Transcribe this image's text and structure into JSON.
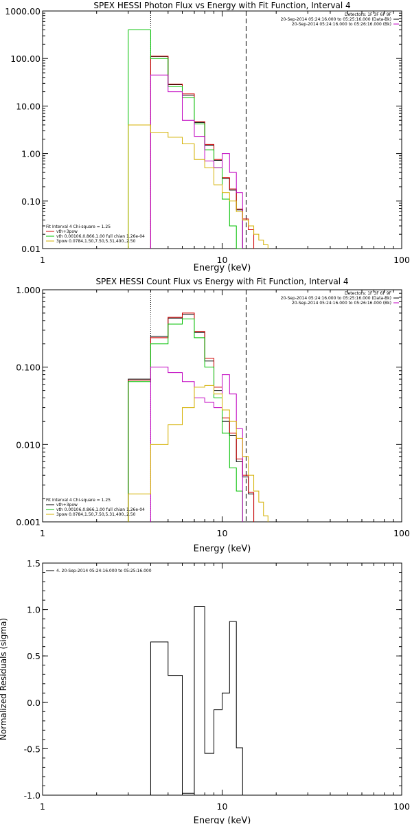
{
  "chart_data": [
    {
      "type": "line",
      "title": "SPEX HESSI Photon Flux vs Energy with Fit Function, Interval 4",
      "xlabel": "Energy (keV)",
      "ylabel": "",
      "x_scale": "log",
      "y_scale": "log",
      "xlim": [
        1,
        100
      ],
      "ylim": [
        0.01,
        1000
      ],
      "x_ticks": [
        "1",
        "10",
        "100"
      ],
      "y_ticks": [
        "0.01",
        "0.10",
        "1.00",
        "10.00",
        "100.00",
        "1000.00"
      ],
      "marker_lines": [
        {
          "style": "dotted",
          "x": 4.0
        },
        {
          "style": "dashed",
          "x": 13.6
        }
      ],
      "top_legend": [
        {
          "text": "Detectors: 1F 3F 6F 9F",
          "color": ""
        },
        {
          "text": "20-Sep-2014 05:24:16.000 to 05:25:16.000 (Data-Bk)",
          "color": "#000000"
        },
        {
          "text": "20-Sep-2014 05:24:16.000 to 05:26:16.000 (Bk)",
          "color": "#c000c0"
        }
      ],
      "fit_legend": [
        {
          "text": "Fit Interval 4   Chi-square = 1.25",
          "color": ""
        },
        {
          "text": "vth+3pow",
          "color": "#d00000"
        },
        {
          "text": "vth 0.00106,0.866,1.00  full chian 1.26e-04",
          "color": "#00c000"
        },
        {
          "text": "3pow 0.0784,1.50,7.50,5.31,400.,2.50",
          "color": "#d4b000"
        }
      ],
      "series": [
        {
          "color": "#000000",
          "edges": [
            4.0,
            5.0,
            6.0,
            7.0,
            8.0,
            9.0,
            10.0,
            11.0,
            12.0,
            13.0
          ],
          "values": [
            110,
            28,
            17,
            4.5,
            1.5,
            0.72,
            0.3,
            0.17,
            0.065
          ]
        },
        {
          "color": "#d00000",
          "edges": [
            4.0,
            5.0,
            6.0,
            7.0,
            8.0,
            9.0,
            10.0,
            11.0,
            12.0,
            13.0,
            14.0,
            15.0
          ],
          "values": [
            112,
            29,
            18,
            4.7,
            1.55,
            0.75,
            0.31,
            0.18,
            0.068,
            0.042,
            0.025
          ]
        },
        {
          "color": "#00c000",
          "edges": [
            3.0,
            4.0,
            5.0,
            6.0,
            7.0,
            8.0,
            9.0,
            10.0,
            11.0,
            12.0,
            13.0
          ],
          "values": [
            400,
            100,
            26,
            15,
            4.2,
            1.2,
            0.5,
            0.11,
            0.03,
            0.01
          ]
        },
        {
          "color": "#c000c0",
          "edges": [
            4.0,
            5.0,
            6.0,
            7.0,
            8.0,
            9.0,
            10.0,
            11.0,
            12.0,
            13.0
          ],
          "values": [
            45,
            20,
            5.0,
            2.3,
            0.7,
            0.5,
            1.0,
            0.4,
            0.15
          ]
        },
        {
          "color": "#d4b000",
          "edges": [
            3.0,
            4.0,
            5.0,
            6.0,
            7.0,
            8.0,
            9.0,
            10.0,
            11.0,
            12.0,
            13.0,
            14.0,
            15.0,
            16.0,
            17.0,
            18.0
          ],
          "values": [
            4.0,
            2.8,
            2.2,
            1.6,
            0.75,
            0.5,
            0.22,
            0.15,
            0.1,
            0.06,
            0.04,
            0.03,
            0.02,
            0.015,
            0.012
          ]
        }
      ]
    },
    {
      "type": "line",
      "title": "SPEX HESSI Count Flux vs Energy with Fit Function, Interval 4",
      "xlabel": "Energy (keV)",
      "ylabel": "",
      "x_scale": "log",
      "y_scale": "log",
      "xlim": [
        1,
        100
      ],
      "ylim": [
        0.001,
        1.0
      ],
      "x_ticks": [
        "1",
        "10",
        "100"
      ],
      "y_ticks": [
        "0.001",
        "0.010",
        "0.100",
        "1.000"
      ],
      "marker_lines": [
        {
          "style": "dotted",
          "x": 4.0
        },
        {
          "style": "dashed",
          "x": 13.6
        }
      ],
      "top_legend": [
        {
          "text": "Detectors: 1F 3F 6F 9F",
          "color": ""
        },
        {
          "text": "20-Sep-2014 05:24:16.000 to 05:25:16.000 (Data-Bk)",
          "color": "#000000"
        },
        {
          "text": "20-Sep-2014 05:24:16.000 to 05:26:16.000 (Bk)",
          "color": "#c000c0"
        }
      ],
      "fit_legend": [
        {
          "text": "Fit Interval 4   Chi-square = 1.25",
          "color": ""
        },
        {
          "text": "vth+3pow",
          "color": "#000000"
        },
        {
          "text": "vth 0.00106,0.866,1.00  full chian 1.26e-04",
          "color": "#00c000"
        },
        {
          "text": "3pow 0.0784,1.50,7.50,5.31,400.,2.50",
          "color": "#d4b000"
        }
      ],
      "series": [
        {
          "color": "#000000",
          "edges": [
            3.0,
            4.0,
            5.0,
            6.0,
            7.0,
            8.0,
            9.0,
            10.0,
            11.0,
            12.0,
            13.0,
            14.0,
            15.0
          ],
          "values": [
            0.07,
            0.25,
            0.43,
            0.48,
            0.28,
            0.12,
            0.05,
            0.02,
            0.013,
            0.006,
            0.0038,
            0.0023
          ]
        },
        {
          "color": "#d00000",
          "edges": [
            3.0,
            4.0,
            5.0,
            6.0,
            7.0,
            8.0,
            9.0,
            10.0,
            11.0,
            12.0,
            13.0,
            14.0,
            15.0
          ],
          "values": [
            0.068,
            0.24,
            0.44,
            0.5,
            0.29,
            0.13,
            0.055,
            0.022,
            0.014,
            0.0065,
            0.004,
            0.0024
          ]
        },
        {
          "color": "#00c000",
          "edges": [
            3.0,
            4.0,
            5.0,
            6.0,
            7.0,
            8.0,
            9.0,
            10.0,
            11.0,
            12.0,
            13.0
          ],
          "values": [
            0.065,
            0.2,
            0.36,
            0.42,
            0.24,
            0.1,
            0.04,
            0.014,
            0.005,
            0.0025,
            0.001
          ]
        },
        {
          "color": "#c000c0",
          "edges": [
            4.0,
            5.0,
            6.0,
            7.0,
            8.0,
            9.0,
            10.0,
            11.0,
            12.0,
            13.0
          ],
          "values": [
            0.1,
            0.085,
            0.065,
            0.04,
            0.035,
            0.03,
            0.08,
            0.045,
            0.016
          ]
        },
        {
          "color": "#d4b000",
          "edges": [
            3.0,
            4.0,
            5.0,
            6.0,
            7.0,
            8.0,
            9.0,
            10.0,
            11.0,
            12.0,
            13.0,
            14.0,
            15.0,
            16.0,
            17.0,
            18.0
          ],
          "values": [
            0.0023,
            0.01,
            0.018,
            0.03,
            0.055,
            0.058,
            0.045,
            0.028,
            0.02,
            0.012,
            0.007,
            0.004,
            0.0025,
            0.0018,
            0.0012
          ]
        }
      ]
    },
    {
      "type": "line",
      "title": "",
      "xlabel": "Energy (keV)",
      "ylabel": "Normalized Residuals (sigma)",
      "x_scale": "log",
      "y_scale": "linear",
      "xlim": [
        1,
        100
      ],
      "ylim": [
        -1.0,
        1.5
      ],
      "x_ticks": [
        "1",
        "10",
        "100"
      ],
      "y_ticks": [
        "-1.0",
        "-0.5",
        "0.0",
        "0.5",
        "1.0",
        "1.5"
      ],
      "marker_lines": [],
      "top_legend": [],
      "fit_legend": [
        {
          "text": "4. 20-Sep-2014 05:24:16.000 to 05:25:16.000",
          "color": "#000000"
        }
      ],
      "series": [
        {
          "color": "#000000",
          "edges": [
            4.0,
            5.0,
            6.0,
            7.0,
            8.0,
            9.0,
            10.0,
            11.0,
            12.0,
            13.0
          ],
          "values": [
            0.65,
            0.29,
            -0.98,
            1.03,
            -0.55,
            -0.08,
            0.1,
            0.87,
            -0.49
          ]
        }
      ]
    }
  ]
}
